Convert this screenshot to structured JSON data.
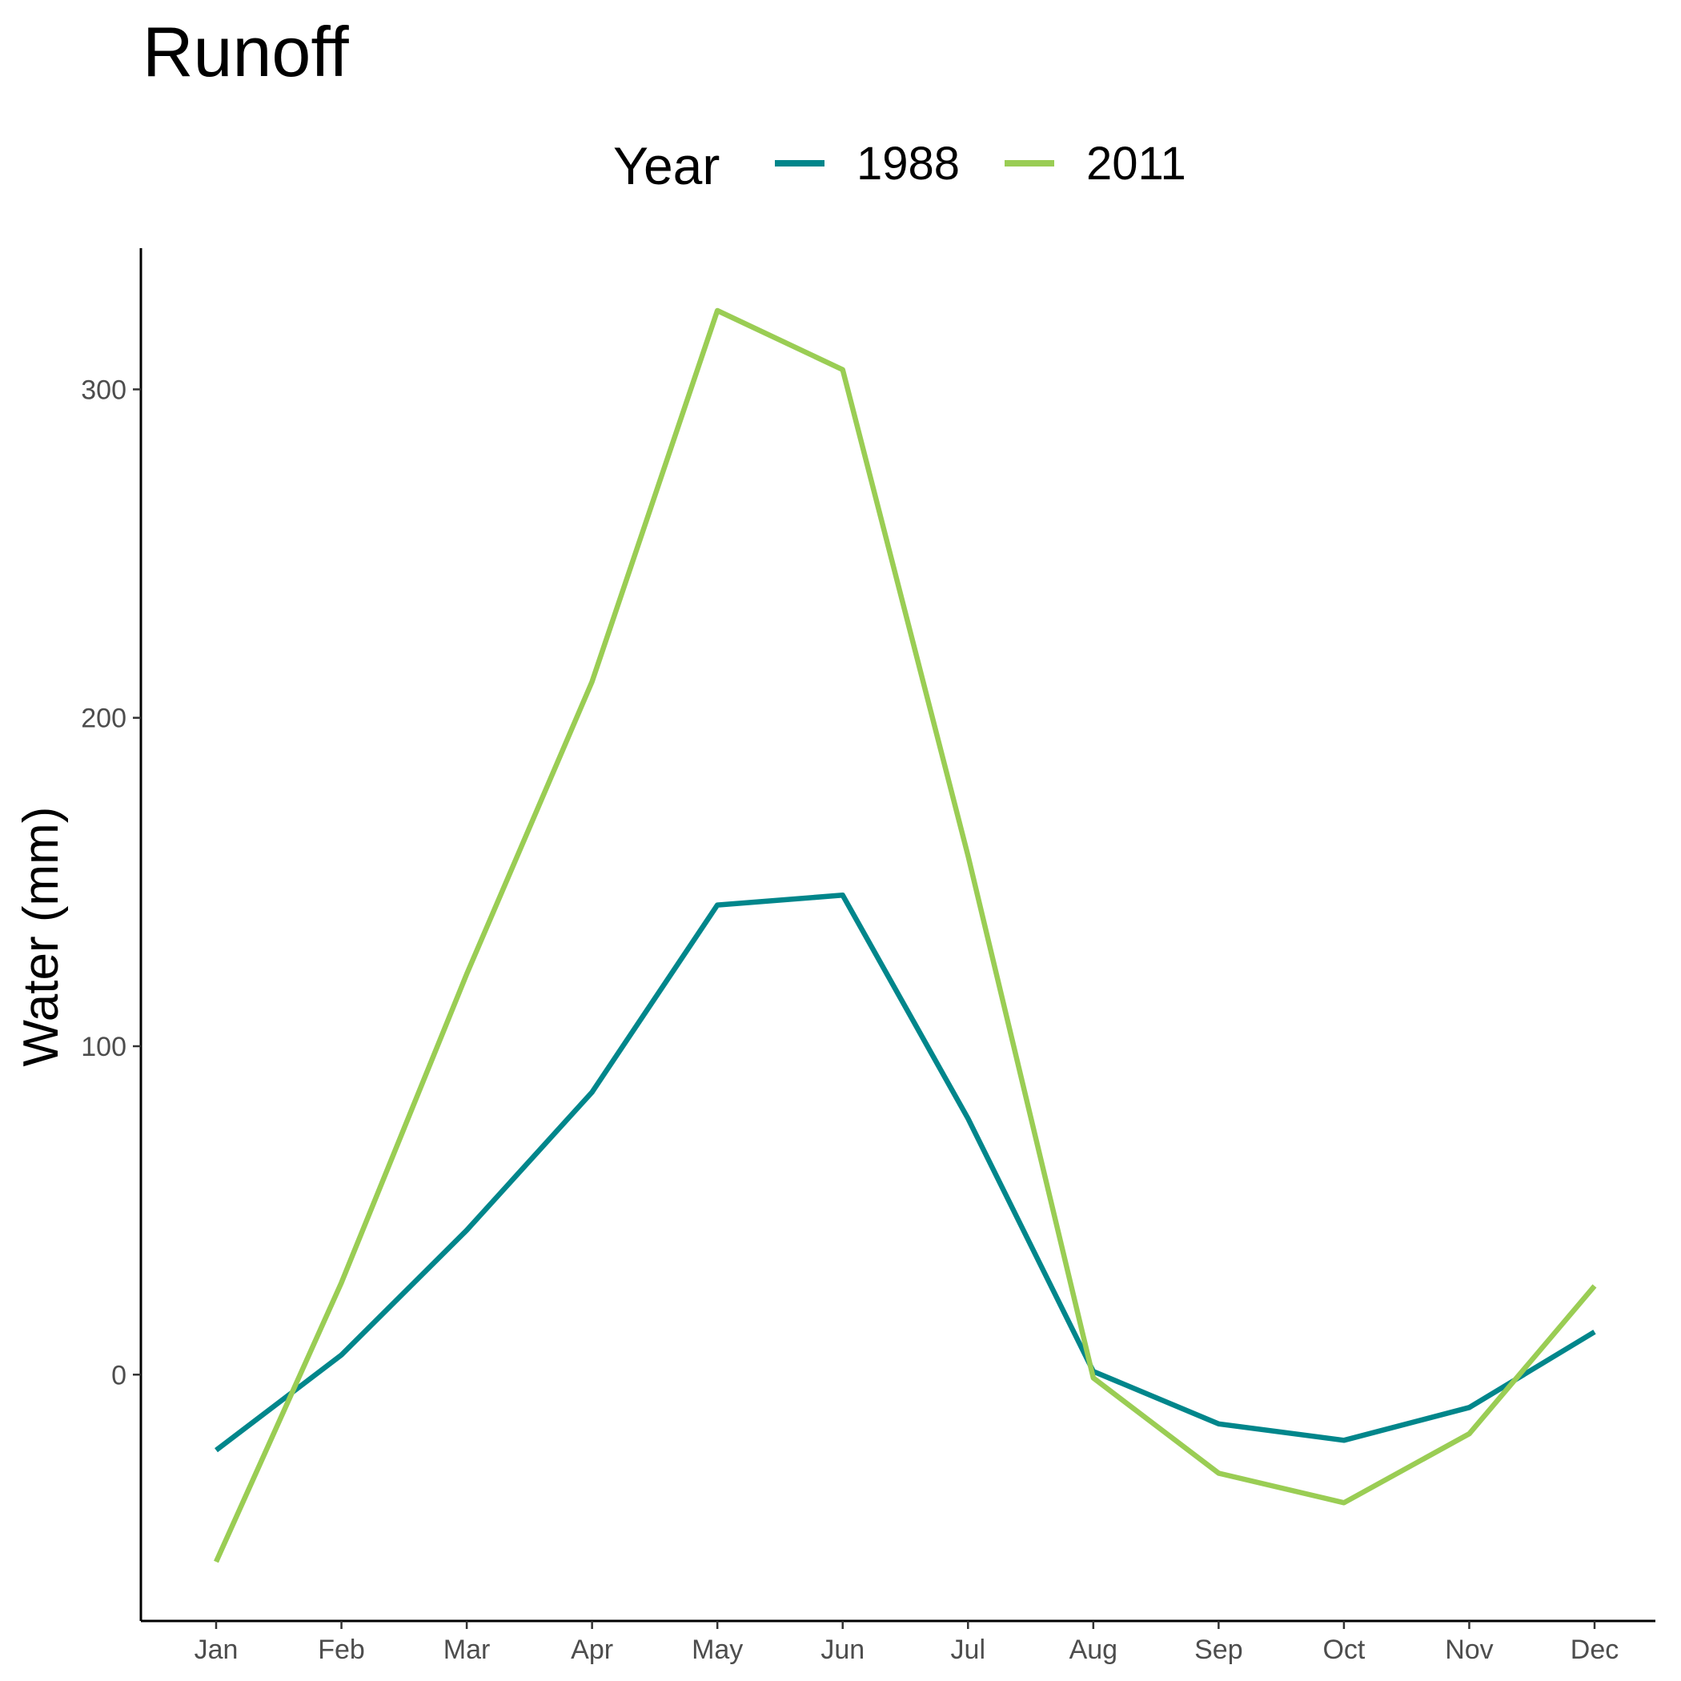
{
  "chart_data": {
    "type": "line",
    "title": "Runoff",
    "xlabel": "",
    "ylabel": "Water (mm)",
    "categories": [
      "Jan",
      "Feb",
      "Mar",
      "Apr",
      "May",
      "Jun",
      "Jul",
      "Aug",
      "Sep",
      "Oct",
      "Nov",
      "Dec"
    ],
    "ylim": [
      -75,
      343
    ],
    "yticks": [
      0,
      100,
      200,
      300
    ],
    "grid": false,
    "legend": {
      "title": "Year",
      "position": "top"
    },
    "series": [
      {
        "name": "1988",
        "color": "#00868B",
        "values": [
          -23,
          6,
          44,
          86,
          143,
          146,
          78,
          1,
          -15,
          -20,
          -10,
          13
        ]
      },
      {
        "name": "2011",
        "color": "#9ACD54",
        "values": [
          -57,
          28,
          122,
          211,
          324,
          306,
          158,
          -1,
          -30,
          -39,
          -18,
          27
        ]
      }
    ]
  }
}
